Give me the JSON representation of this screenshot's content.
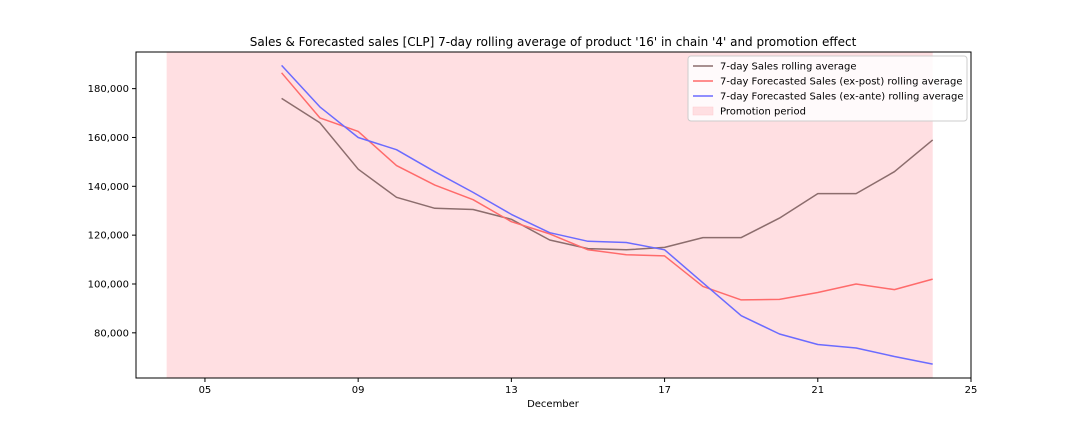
{
  "chart_data": {
    "type": "line",
    "title": "Sales & Forecasted sales [CLP] 7-day rolling average of product '16' in chain '4' and promotion effect",
    "xlabel": "December",
    "ylabel": "",
    "x_tick_labels": [
      "05",
      "09",
      "13",
      "17",
      "21",
      "25"
    ],
    "x_ticks": [
      5,
      9,
      13,
      17,
      21,
      25
    ],
    "y_tick_labels": [
      "80,000",
      "100,000",
      "120,000",
      "140,000",
      "160,000",
      "180,000"
    ],
    "y_ticks": [
      80000,
      100000,
      120000,
      140000,
      160000,
      180000
    ],
    "xlim": [
      3.2,
      25
    ],
    "ylim": [
      61500,
      195000
    ],
    "grid": false,
    "legend_position": "top-right",
    "promotion_period": {
      "label": "Promotion period",
      "start": 4,
      "end": 24,
      "color": "#ffdfe2"
    },
    "x": [
      7,
      8,
      9,
      10,
      11,
      12,
      13,
      14,
      15,
      16,
      17,
      18,
      19,
      20,
      21,
      22,
      23,
      24
    ],
    "series": [
      {
        "name": "7-day Sales rolling average",
        "color": "#8c6d6d",
        "values": [
          176000,
          166000,
          147000,
          135500,
          131000,
          130500,
          126500,
          118000,
          114500,
          114000,
          115000,
          119000,
          119000,
          127000,
          137000,
          137000,
          146000,
          159000
        ]
      },
      {
        "name": "7-day Forecasted Sales (ex-post) rolling average",
        "color": "#ff6b6b",
        "values": [
          186500,
          168000,
          162500,
          148500,
          140500,
          134500,
          125500,
          120500,
          114000,
          112000,
          111500,
          99000,
          93500,
          93700,
          96500,
          100000,
          97700,
          102000
        ]
      },
      {
        "name": "7-day Forecasted Sales (ex-ante) rolling average",
        "color": "#6b6bff",
        "values": [
          189500,
          172500,
          160000,
          155000,
          146000,
          137500,
          128500,
          121000,
          117500,
          117000,
          114000,
          100500,
          87000,
          79500,
          75200,
          73800,
          70300,
          67200
        ]
      }
    ]
  }
}
